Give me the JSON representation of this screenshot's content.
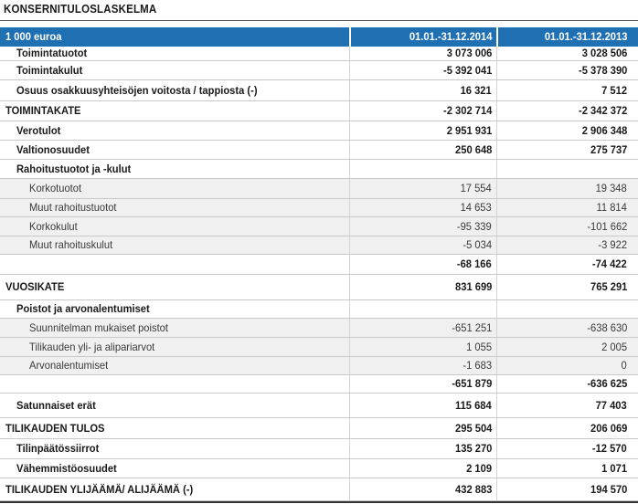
{
  "title": "KONSERNITULOSLASKELMA",
  "header": {
    "unit": "1 000 euroa",
    "col1": "01.01.-31.12.2014",
    "col2": "01.01.-31.12.2013"
  },
  "rows": [
    {
      "label": "Toimintatuotot",
      "v1": "3 073 006",
      "v2": "3 028 506",
      "style": "bold",
      "indent": 1
    },
    {
      "label": "Toimintakulut",
      "v1": "-5 392 041",
      "v2": "-5 378 390",
      "style": "bold",
      "indent": 1
    },
    {
      "label": "Osuus osakkuusyhteisöjen voitosta / tappiosta (-)",
      "v1": "16 321",
      "v2": "7 512",
      "style": "bold",
      "indent": 1
    },
    {
      "label": "TOIMINTAKATE",
      "v1": "-2 302 714",
      "v2": "-2 342 372",
      "style": "bold",
      "indent": 0
    },
    {
      "label": "Verotulot",
      "v1": "2 951 931",
      "v2": "2 906 348",
      "style": "bold",
      "indent": 1
    },
    {
      "label": "Valtionosuudet",
      "v1": "250 648",
      "v2": "275 737",
      "style": "bold",
      "indent": 1
    },
    {
      "label": "Rahoitustuotot ja -kulut",
      "v1": "",
      "v2": "",
      "style": "bold",
      "indent": 1
    },
    {
      "label": "Korkotuotot",
      "v1": "17 554",
      "v2": "19 348",
      "style": "sub",
      "indent": 2
    },
    {
      "label": "Muut rahoitustuotot",
      "v1": "14 653",
      "v2": "11 814",
      "style": "sub",
      "indent": 2
    },
    {
      "label": "Korkokulut",
      "v1": "-95 339",
      "v2": "-101 662",
      "style": "sub",
      "indent": 2
    },
    {
      "label": "Muut rahoituskulut",
      "v1": "-5 034",
      "v2": "-3 922",
      "style": "sub",
      "indent": 2
    },
    {
      "label": "",
      "v1": "-68 166",
      "v2": "-74 422",
      "style": "bold",
      "indent": 1
    },
    {
      "label": "VUOSIKATE",
      "v1": "831 699",
      "v2": "765 291",
      "style": "bold",
      "indent": 0
    },
    {
      "label": "Poistot ja arvonalentumiset",
      "v1": "",
      "v2": "",
      "style": "bold",
      "indent": 1
    },
    {
      "label": "Suunnitelman mukaiset poistot",
      "v1": "-651 251",
      "v2": "-638 630",
      "style": "sub",
      "indent": 2
    },
    {
      "label": "Tilikauden yli- ja alipariarvot",
      "v1": "1 055",
      "v2": "2 005",
      "style": "sub",
      "indent": 2
    },
    {
      "label": "Arvonalentumiset",
      "v1": "-1 683",
      "v2": "0",
      "style": "sub",
      "indent": 2
    },
    {
      "label": "",
      "v1": "-651 879",
      "v2": "-636 625",
      "style": "bold",
      "indent": 1
    },
    {
      "label": "Satunnaiset erät",
      "v1": "115 684",
      "v2": "77 403",
      "style": "bold",
      "indent": 1
    },
    {
      "label": "TILIKAUDEN TULOS",
      "v1": "295 504",
      "v2": "206 069",
      "style": "bold",
      "indent": 0
    },
    {
      "label": "Tilinpäätössiirrot",
      "v1": "135 270",
      "v2": "-12 570",
      "style": "bold",
      "indent": 1
    },
    {
      "label": "Vähemmistöosuudet",
      "v1": "2 109",
      "v2": "1 071",
      "style": "bold",
      "indent": 1
    },
    {
      "label": "TILIKAUDEN YLIJÄÄMÄ/ ALIJÄÄMÄ (-)",
      "v1": "432 883",
      "v2": "194 570",
      "style": "bold",
      "indent": 0
    }
  ]
}
